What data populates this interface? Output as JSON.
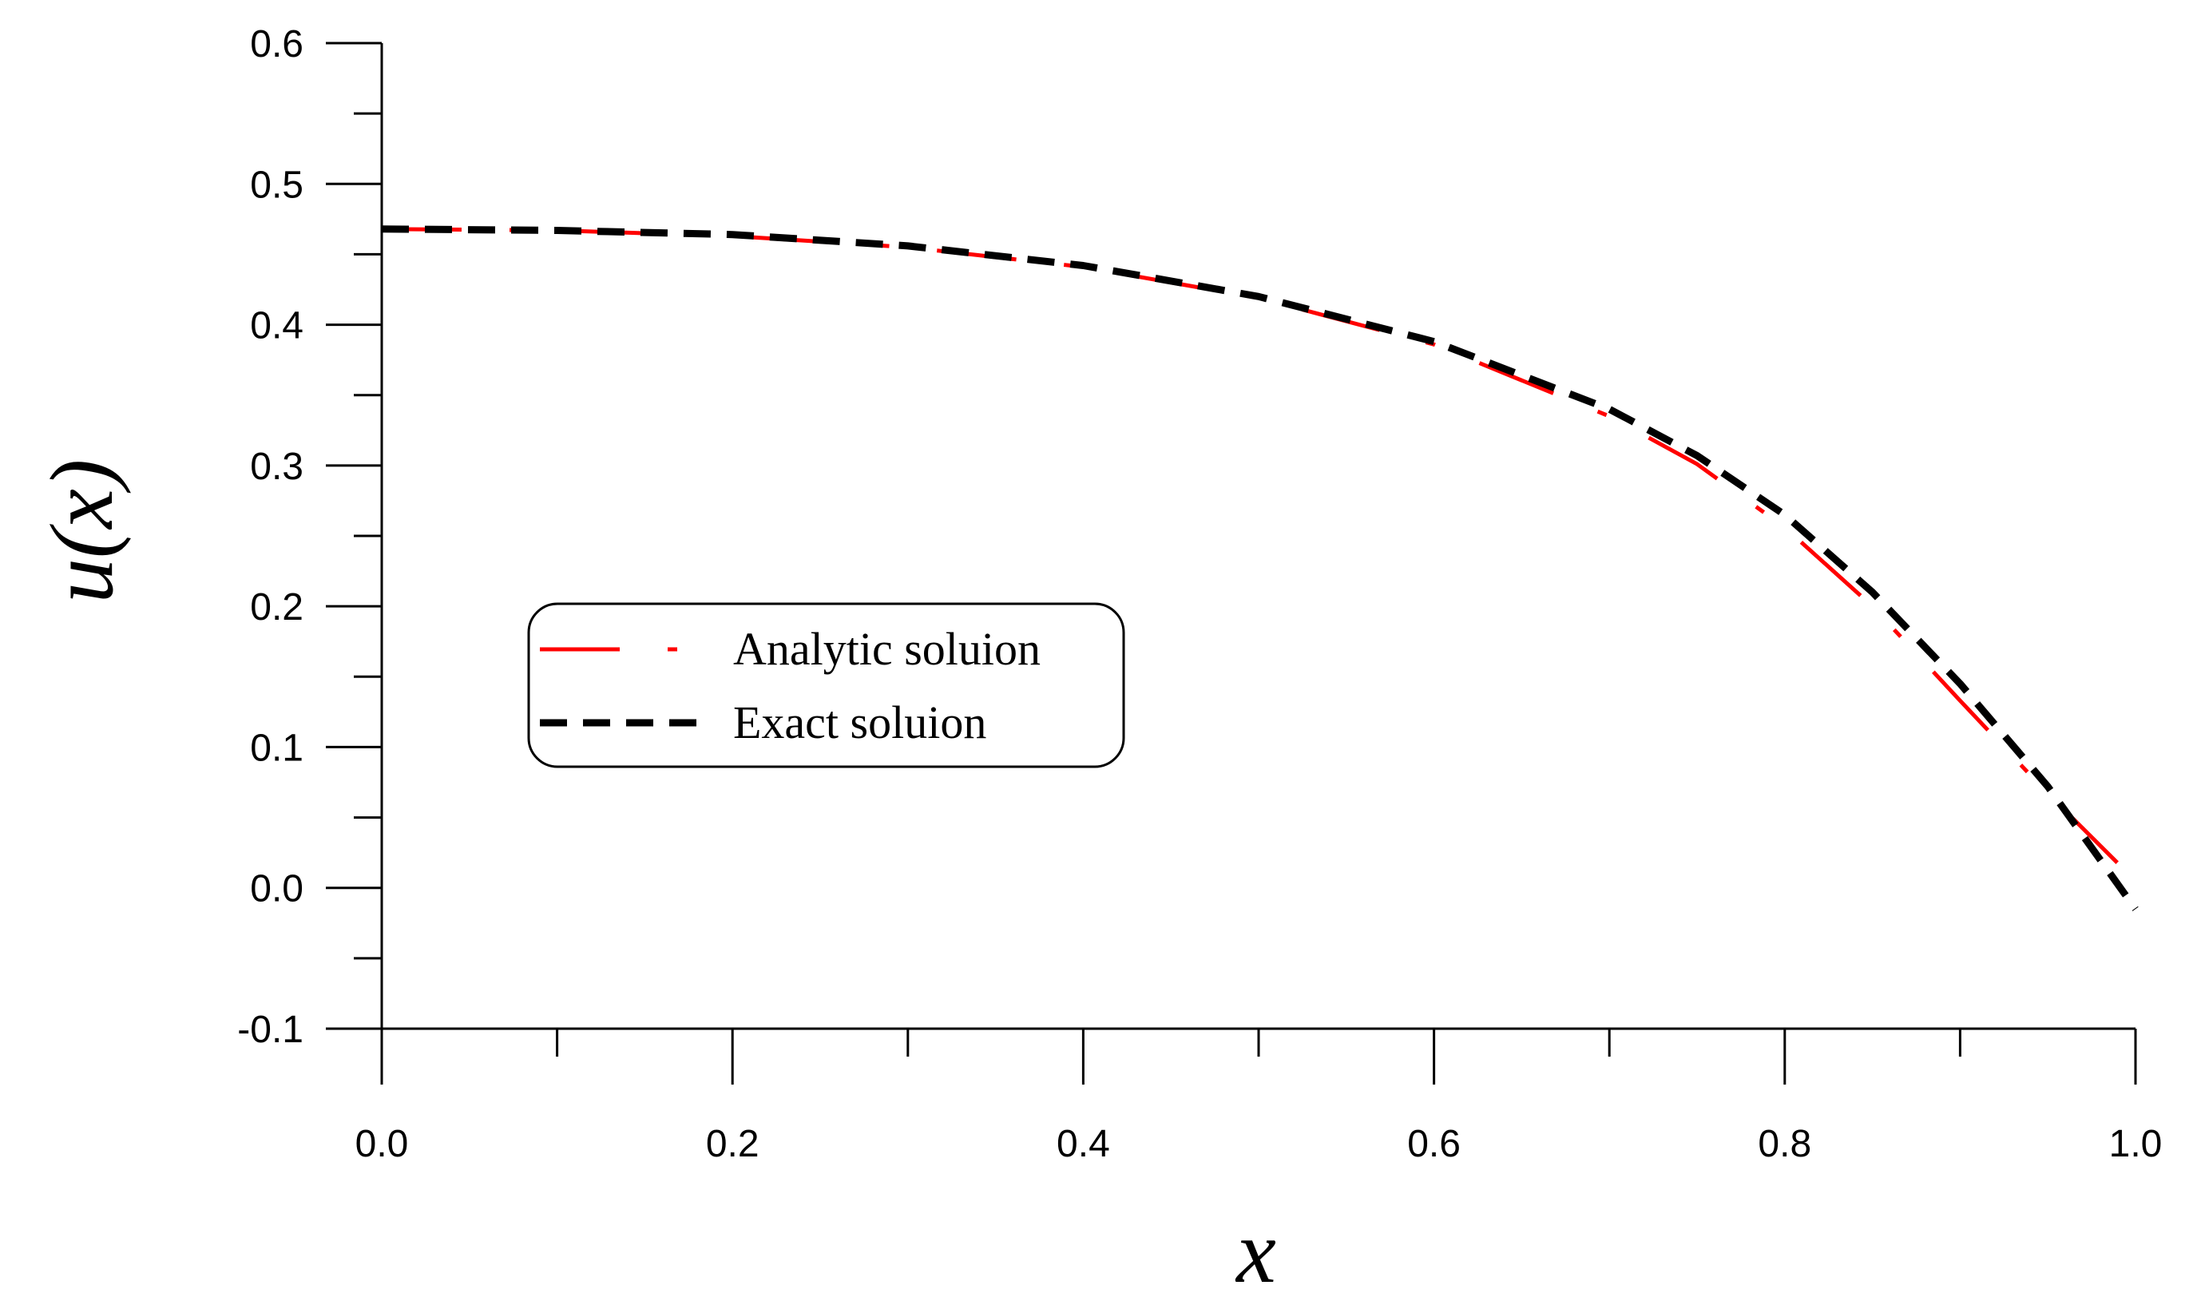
{
  "chart_data": {
    "type": "line",
    "title": "",
    "xlabel": "x",
    "ylabel": "u(x)",
    "xlim": [
      0.0,
      1.0
    ],
    "ylim": [
      -0.1,
      0.6
    ],
    "x_ticks": [
      "0.0",
      "0.2",
      "0.4",
      "0.6",
      "0.8",
      "1.0"
    ],
    "y_ticks": [
      "-0.1",
      "0.0",
      "0.1",
      "0.2",
      "0.3",
      "0.4",
      "0.5",
      "0.6"
    ],
    "grid": false,
    "legend_position": "center-left",
    "series": [
      {
        "name": "Analytic soluion",
        "color": "#ff0000",
        "style": "long-dash-dot",
        "x": [
          0.0,
          0.1,
          0.2,
          0.3,
          0.4,
          0.5,
          0.6,
          0.7,
          0.75,
          0.8,
          0.85,
          0.9,
          0.95,
          1.0
        ],
        "y": [
          0.468,
          0.467,
          0.463,
          0.455,
          0.441,
          0.419,
          0.386,
          0.335,
          0.301,
          0.256,
          0.2,
          0.133,
          0.067,
          0.005
        ]
      },
      {
        "name": "Exact soluion",
        "color": "#000000",
        "style": "dashed",
        "x": [
          0.0,
          0.1,
          0.2,
          0.3,
          0.4,
          0.5,
          0.6,
          0.7,
          0.75,
          0.8,
          0.85,
          0.9,
          0.95,
          1.0
        ],
        "y": [
          0.468,
          0.467,
          0.464,
          0.456,
          0.442,
          0.42,
          0.388,
          0.34,
          0.307,
          0.265,
          0.21,
          0.145,
          0.072,
          -0.015
        ]
      }
    ]
  }
}
